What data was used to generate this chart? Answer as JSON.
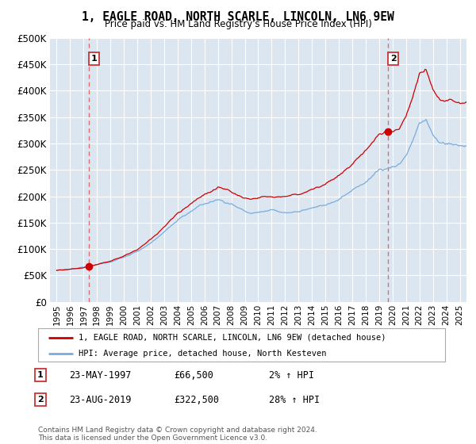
{
  "title": "1, EAGLE ROAD, NORTH SCARLE, LINCOLN, LN6 9EW",
  "subtitle": "Price paid vs. HM Land Registry's House Price Index (HPI)",
  "ylabel_ticks": [
    "£0",
    "£50K",
    "£100K",
    "£150K",
    "£200K",
    "£250K",
    "£300K",
    "£350K",
    "£400K",
    "£450K",
    "£500K"
  ],
  "ytick_values": [
    0,
    50000,
    100000,
    150000,
    200000,
    250000,
    300000,
    350000,
    400000,
    450000,
    500000
  ],
  "ylim": [
    0,
    500000
  ],
  "xlim_start": 1994.5,
  "xlim_end": 2025.5,
  "background_color": "#ffffff",
  "plot_bg_color": "#dce6f1",
  "grid_color": "#ffffff",
  "marker1_x": 1997.39,
  "marker1_y": 66500,
  "marker2_x": 2019.64,
  "marker2_y": 322500,
  "vline1_x": 1997.39,
  "vline2_x": 2019.64,
  "label1_date": "23-MAY-1997",
  "label1_price": "£66,500",
  "label1_hpi": "2% ↑ HPI",
  "label2_date": "23-AUG-2019",
  "label2_price": "£322,500",
  "label2_hpi": "28% ↑ HPI",
  "legend_line1": "1, EAGLE ROAD, NORTH SCARLE, LINCOLN, LN6 9EW (detached house)",
  "legend_line2": "HPI: Average price, detached house, North Kesteven",
  "footnote": "Contains HM Land Registry data © Crown copyright and database right 2024.\nThis data is licensed under the Open Government Licence v3.0.",
  "line_color_red": "#cc0000",
  "line_color_blue": "#7aacdb",
  "marker_color": "#cc0000",
  "vline_color": "#e06060",
  "xtick_years": [
    1995,
    1996,
    1997,
    1998,
    1999,
    2000,
    2001,
    2002,
    2003,
    2004,
    2005,
    2006,
    2007,
    2008,
    2009,
    2010,
    2011,
    2012,
    2013,
    2014,
    2015,
    2016,
    2017,
    2018,
    2019,
    2020,
    2021,
    2022,
    2023,
    2024,
    2025
  ]
}
